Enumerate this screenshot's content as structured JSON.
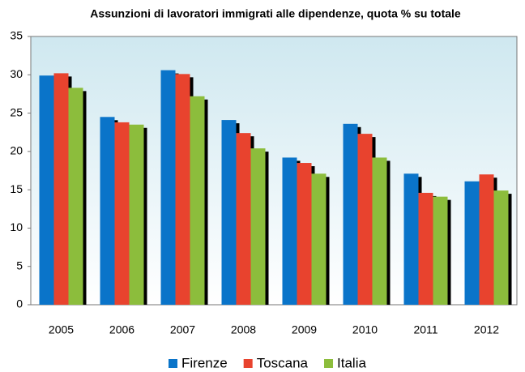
{
  "chart_data": {
    "type": "bar",
    "title": "Assunzioni di lavoratori immigrati alle dipendenze, quota % su totale",
    "categories": [
      "2005",
      "2006",
      "2007",
      "2008",
      "2009",
      "2010",
      "2011",
      "2012"
    ],
    "series": [
      {
        "name": "Firenze",
        "color": "#0a74c9",
        "values": [
          29.9,
          24.5,
          30.6,
          24.1,
          19.2,
          23.6,
          17.1,
          16.1
        ]
      },
      {
        "name": "Toscana",
        "color": "#e8432e",
        "values": [
          30.2,
          23.8,
          30.1,
          22.4,
          18.5,
          22.3,
          14.6,
          17.0
        ]
      },
      {
        "name": "Italia",
        "color": "#8cbd3c",
        "values": [
          28.3,
          23.5,
          27.2,
          20.4,
          17.1,
          19.2,
          14.1,
          14.9
        ]
      }
    ],
    "ylim": [
      0,
      35
    ],
    "yticks": [
      0,
      5,
      10,
      15,
      20,
      25,
      30,
      35
    ],
    "legend": "bottom"
  }
}
